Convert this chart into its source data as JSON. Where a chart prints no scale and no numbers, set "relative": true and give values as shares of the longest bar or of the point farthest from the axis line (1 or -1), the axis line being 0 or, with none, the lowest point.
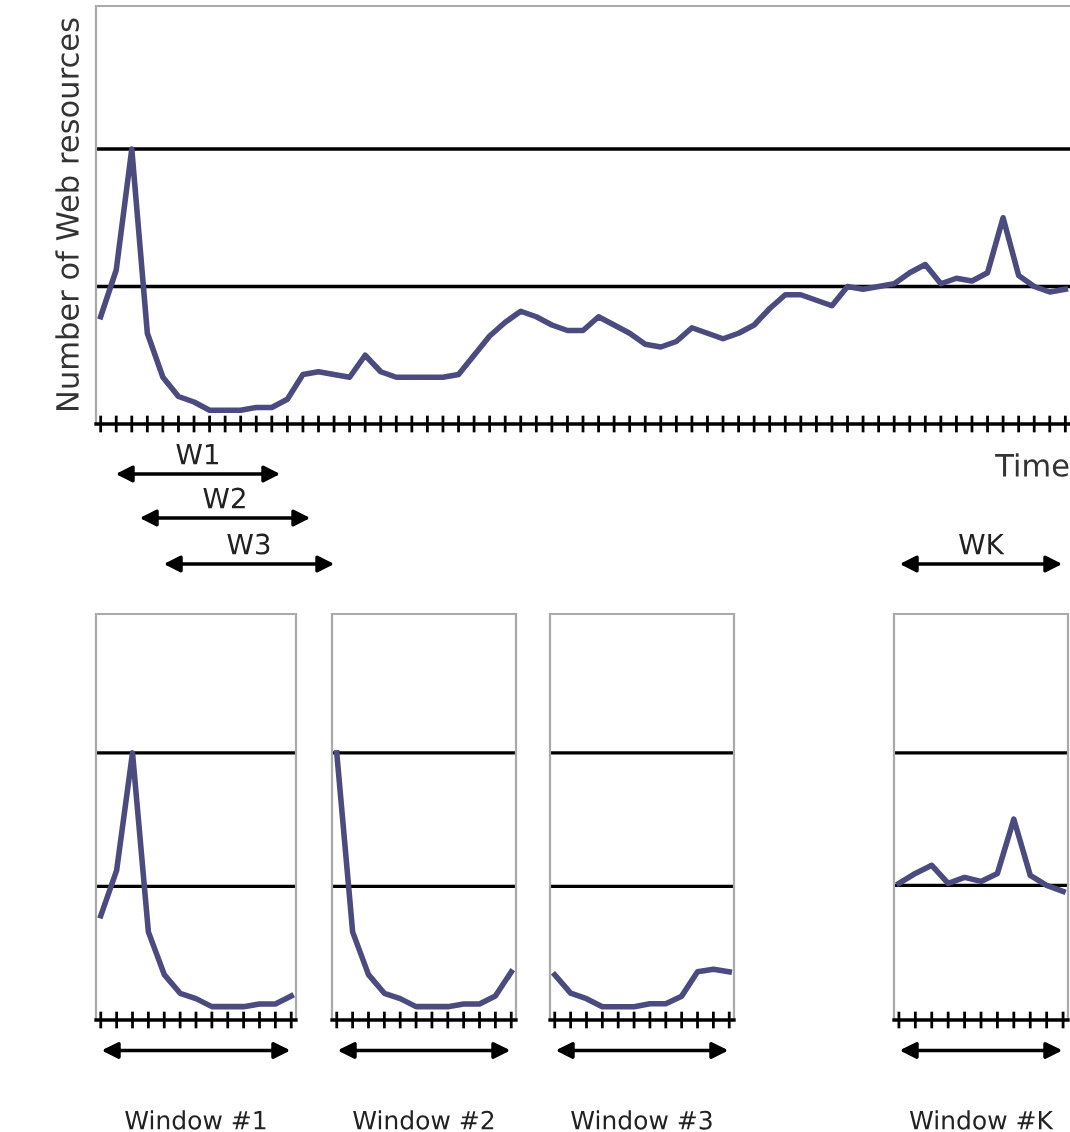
{
  "chart_data": [
    {
      "type": "line",
      "relative": true,
      "ylabel": "Number of Web resources",
      "xlabel": "Time",
      "categories": [
        null,
        null,
        null,
        null,
        null,
        null,
        null,
        null,
        null,
        null,
        null,
        null,
        null,
        null,
        null,
        null,
        null,
        null,
        null,
        null,
        null,
        null,
        null,
        null,
        null,
        null,
        null,
        null,
        null,
        null,
        null,
        null,
        null,
        null,
        null,
        null,
        null,
        null,
        null,
        null,
        null,
        null,
        null,
        null,
        null,
        null,
        null,
        null,
        null,
        null,
        null,
        null,
        null,
        null,
        null,
        null,
        null,
        null,
        null,
        null,
        null,
        null,
        null
      ],
      "ref_lines": [
        {
          "axis": "y",
          "value": 1.0,
          "color": "#000000"
        },
        {
          "axis": "y",
          "value": 0.5,
          "color": "#000000"
        }
      ],
      "annotations": [
        "W1",
        "W2",
        "W3",
        "WK"
      ],
      "series": [
        {
          "color": "#4b4b7f",
          "values": [
            0.39,
            0.56,
            1.0,
            0.33,
            0.17,
            0.1,
            0.08,
            0.05,
            0.05,
            0.05,
            0.06,
            0.06,
            0.09,
            0.18,
            0.19,
            0.18,
            0.17,
            0.25,
            0.19,
            0.17,
            0.17,
            0.17,
            0.17,
            0.18,
            0.25,
            0.32,
            0.37,
            0.41,
            0.39,
            0.36,
            0.34,
            0.34,
            0.39,
            0.36,
            0.33,
            0.29,
            0.28,
            0.3,
            0.35,
            0.33,
            0.31,
            0.33,
            0.36,
            0.42,
            0.47,
            0.47,
            0.45,
            0.43,
            0.5,
            0.49,
            0.5,
            0.51,
            0.55,
            0.58,
            0.51,
            0.53,
            0.52,
            0.55,
            0.75,
            0.54,
            0.5,
            0.48,
            0.49
          ]
        }
      ]
    },
    {
      "type": "line",
      "relative": true,
      "xlabel": "Window #1",
      "categories": [
        null,
        null,
        null,
        null,
        null,
        null,
        null,
        null,
        null,
        null,
        null,
        null,
        null
      ],
      "ref_lines": [
        {
          "axis": "y",
          "value": 1.0,
          "color": "#000000"
        },
        {
          "axis": "y",
          "value": 0.5,
          "color": "#000000"
        }
      ],
      "series": [
        {
          "color": "#4b4b7f",
          "values": [
            0.39,
            0.56,
            1.0,
            0.33,
            0.17,
            0.1,
            0.08,
            0.05,
            0.05,
            0.05,
            0.06,
            0.06,
            0.09
          ]
        }
      ]
    },
    {
      "type": "line",
      "relative": true,
      "xlabel": "Window #2",
      "categories": [
        null,
        null,
        null,
        null,
        null,
        null,
        null,
        null,
        null,
        null,
        null,
        null
      ],
      "ref_lines": [
        {
          "axis": "y",
          "value": 1.0,
          "color": "#000000"
        },
        {
          "axis": "y",
          "value": 0.5,
          "color": "#000000"
        }
      ],
      "series": [
        {
          "color": "#4b4b7f",
          "values": [
            1.0,
            0.33,
            0.17,
            0.1,
            0.08,
            0.05,
            0.05,
            0.05,
            0.06,
            0.06,
            0.09,
            0.18
          ]
        }
      ]
    },
    {
      "type": "line",
      "relative": true,
      "xlabel": "Window #3",
      "categories": [
        null,
        null,
        null,
        null,
        null,
        null,
        null,
        null,
        null,
        null,
        null,
        null
      ],
      "ref_lines": [
        {
          "axis": "y",
          "value": 5.26,
          "color": "#000000"
        },
        {
          "axis": "y",
          "value": 2.63,
          "color": "#000000"
        }
      ],
      "series": [
        {
          "color": "#4b4b7f",
          "values": [
            0.89,
            0.53,
            0.42,
            0.26,
            0.26,
            0.26,
            0.32,
            0.32,
            0.47,
            0.95,
            1.0,
            0.95
          ]
        }
      ]
    },
    {
      "type": "line",
      "relative": true,
      "xlabel": "Window #K",
      "categories": [
        null,
        null,
        null,
        null,
        null,
        null,
        null,
        null,
        null,
        null,
        null
      ],
      "ref_lines": [
        {
          "axis": "y",
          "value": 1.33,
          "color": "#000000"
        },
        {
          "axis": "y",
          "value": 0.67,
          "color": "#000000"
        }
      ],
      "series": [
        {
          "color": "#4b4b7f",
          "values": [
            0.68,
            0.73,
            0.77,
            0.68,
            0.71,
            0.69,
            0.73,
            1.0,
            0.72,
            0.67,
            0.64
          ]
        }
      ]
    }
  ]
}
